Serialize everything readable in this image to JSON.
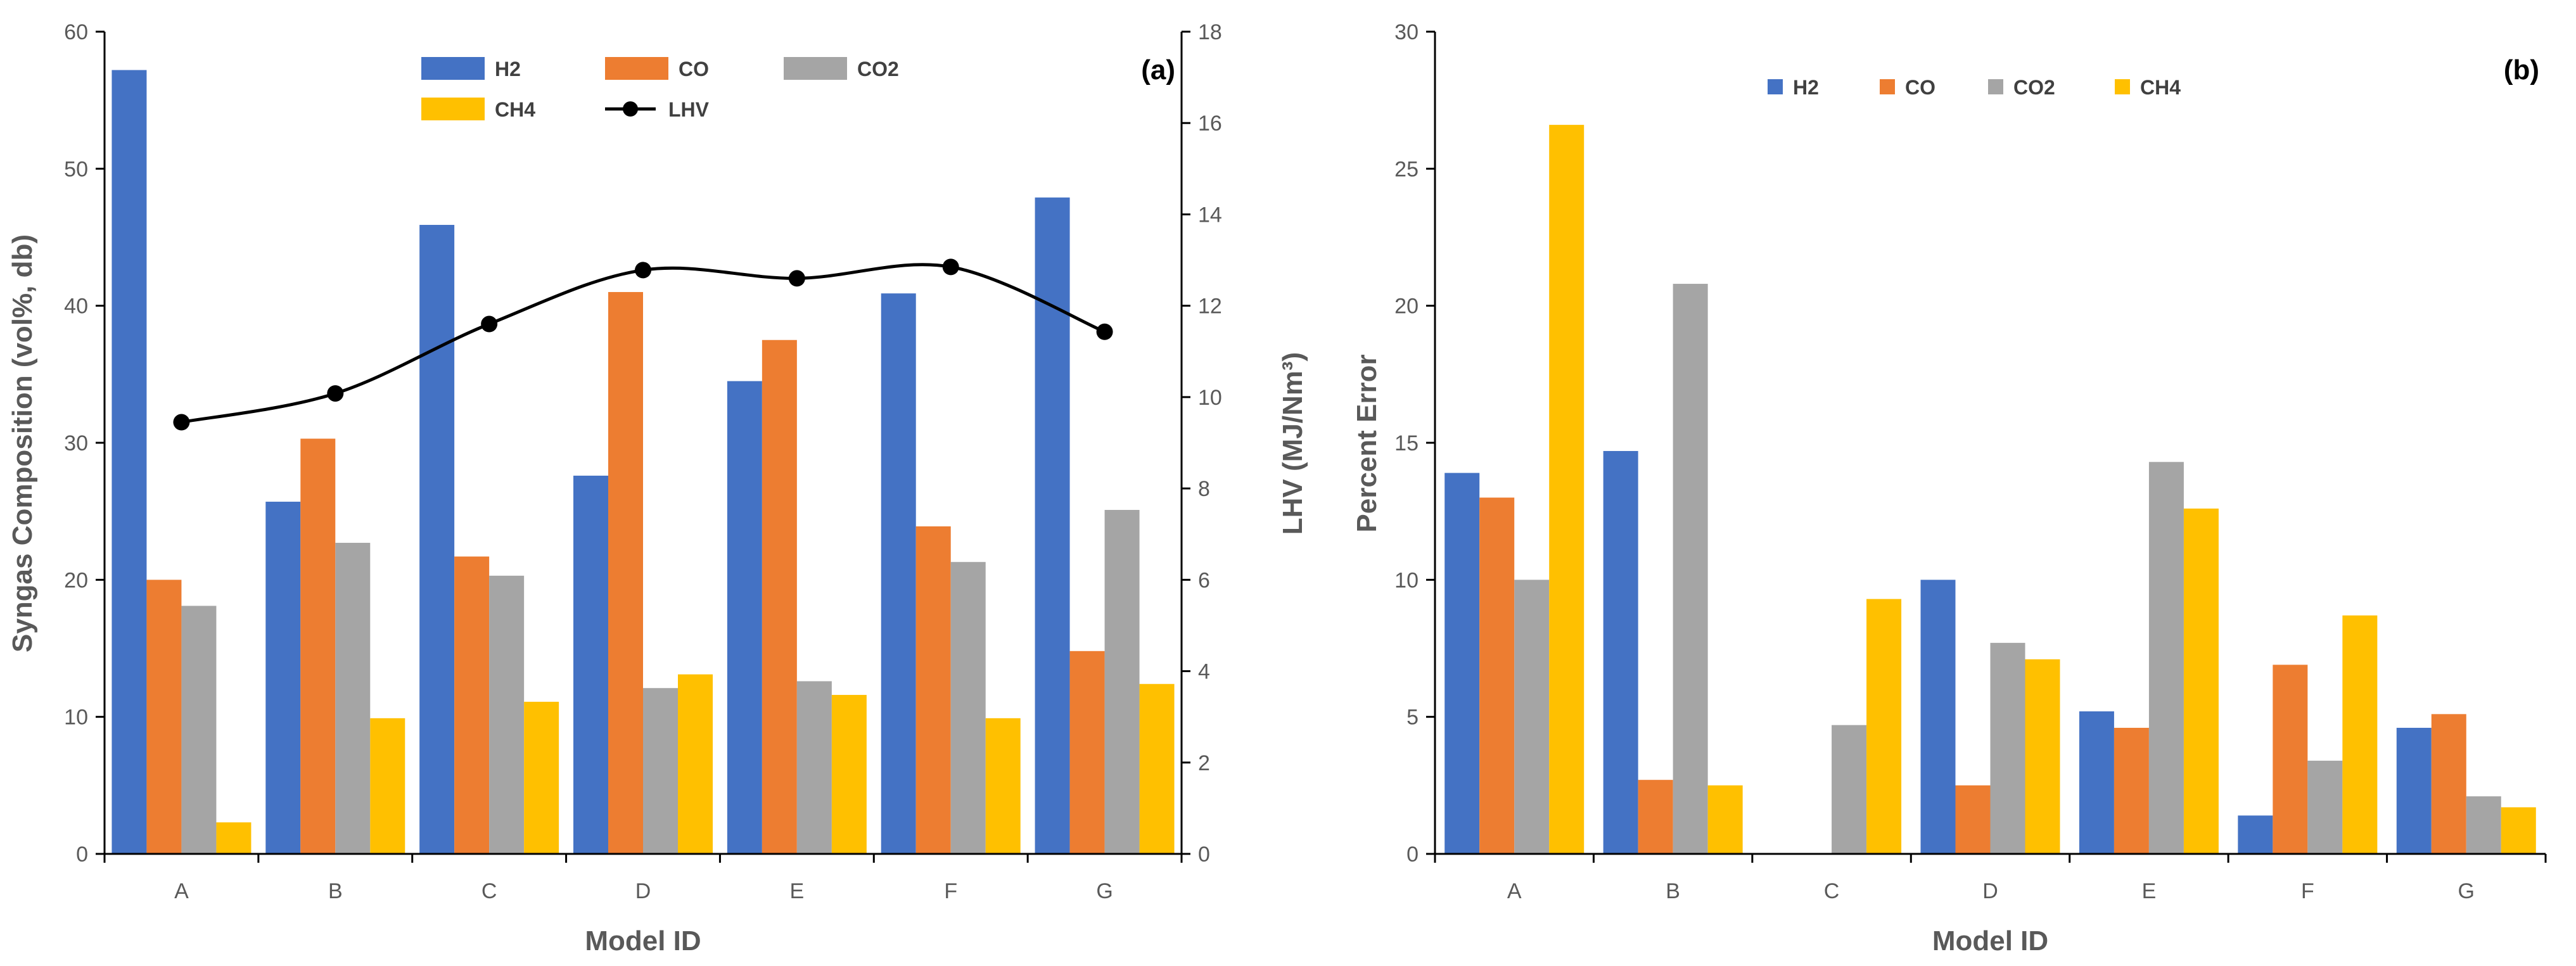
{
  "colors": {
    "H2": "#4472C4",
    "CO": "#ED7D31",
    "CO2": "#A5A5A5",
    "CH4": "#FFC000",
    "LHV": "#000000",
    "axis": "#000000",
    "text": "#595959"
  },
  "chart_data": [
    {
      "type": "bar",
      "panel_label": "(a)",
      "title": "",
      "xlabel": "Model ID",
      "ylabel": "Syngas Composition (vol%, db)",
      "y2label": "LHV (MJ/Nm³)",
      "ylim": [
        0,
        60
      ],
      "yticks": [
        0,
        10,
        20,
        30,
        40,
        50,
        60
      ],
      "y2lim": [
        0,
        18
      ],
      "y2ticks": [
        0,
        2,
        4,
        6,
        8,
        10,
        12,
        14,
        16,
        18
      ],
      "grid": false,
      "legend_position": "top-center",
      "categories": [
        "A",
        "B",
        "C",
        "D",
        "E",
        "F",
        "G"
      ],
      "series": [
        {
          "name": "H2",
          "values": [
            57.2,
            25.7,
            45.9,
            27.6,
            34.5,
            40.9,
            47.9
          ]
        },
        {
          "name": "CO",
          "values": [
            20.0,
            30.3,
            21.7,
            41.0,
            37.5,
            23.9,
            14.8
          ]
        },
        {
          "name": "CO2",
          "values": [
            18.1,
            22.7,
            20.3,
            12.1,
            12.6,
            21.3,
            25.1
          ]
        },
        {
          "name": "CH4",
          "values": [
            2.3,
            9.9,
            11.1,
            13.1,
            11.6,
            9.9,
            12.4
          ]
        }
      ],
      "line_series": {
        "name": "LHV",
        "axis": "secondary",
        "values": [
          9.45,
          10.08,
          11.6,
          12.78,
          12.6,
          12.85,
          11.43
        ]
      }
    },
    {
      "type": "bar",
      "panel_label": "(b)",
      "title": "",
      "xlabel": "Model ID",
      "ylabel": "Percent Error",
      "ylim": [
        0,
        30
      ],
      "yticks": [
        0,
        5,
        10,
        15,
        20,
        25,
        30
      ],
      "grid": false,
      "legend_position": "top-center",
      "categories": [
        "A",
        "B",
        "C",
        "D",
        "E",
        "F",
        "G"
      ],
      "series": [
        {
          "name": "H2",
          "values": [
            13.9,
            14.7,
            0,
            10.0,
            5.2,
            1.4,
            4.6
          ]
        },
        {
          "name": "CO",
          "values": [
            13.0,
            2.7,
            0,
            2.5,
            4.6,
            6.9,
            5.1
          ]
        },
        {
          "name": "CO2",
          "values": [
            10.0,
            20.8,
            4.7,
            7.7,
            14.3,
            3.4,
            2.1
          ]
        },
        {
          "name": "CH4",
          "values": [
            26.6,
            2.5,
            9.3,
            7.1,
            12.6,
            8.7,
            1.7
          ]
        }
      ]
    }
  ]
}
